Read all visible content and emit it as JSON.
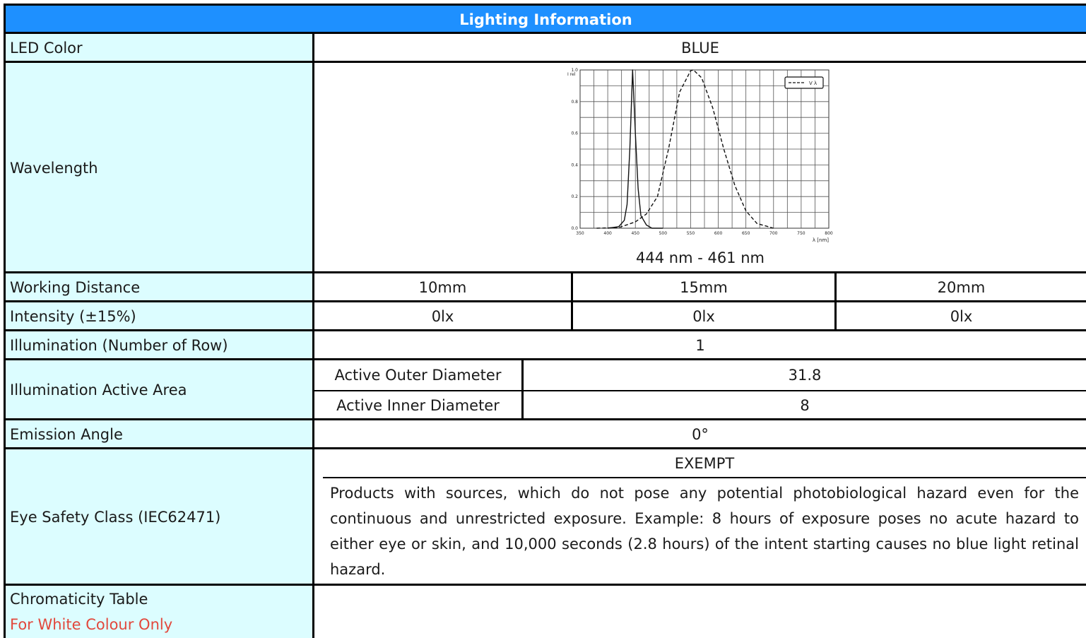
{
  "title": "Lighting Information",
  "led_color": {
    "label": "LED Color",
    "value": "BLUE"
  },
  "wavelength": {
    "label": "Wavelength",
    "range": "444 nm - 461 nm",
    "chart_data": {
      "type": "line",
      "xlabel": "λ [nm]",
      "ylabel": "I rel",
      "xlim": [
        350,
        800
      ],
      "ylim": [
        0,
        1.0
      ],
      "x_ticks": [
        "350",
        "400",
        "450",
        "500",
        "550",
        "600",
        "650",
        "700",
        "750",
        "800"
      ],
      "y_ticks": [
        "0.0",
        "0.2",
        "0.4",
        "0.6",
        "0.8",
        "1.0"
      ],
      "legend": "V λ",
      "series": [
        {
          "style": "solid",
          "x": [
            400,
            420,
            430,
            435,
            440,
            445,
            450,
            455,
            460,
            470,
            480,
            500
          ],
          "y": [
            0,
            0.01,
            0.05,
            0.15,
            0.5,
            1.0,
            0.6,
            0.25,
            0.08,
            0.02,
            0,
            0
          ]
        },
        {
          "name": "V λ",
          "style": "dashed",
          "x": [
            380,
            420,
            450,
            470,
            490,
            510,
            530,
            550,
            555,
            570,
            590,
            610,
            630,
            650,
            670,
            700
          ],
          "y": [
            0,
            0.004,
            0.04,
            0.09,
            0.2,
            0.5,
            0.86,
            0.995,
            1.0,
            0.95,
            0.76,
            0.5,
            0.27,
            0.11,
            0.03,
            0
          ]
        }
      ]
    }
  },
  "working_distance": {
    "label": "Working Distance",
    "values": [
      "10mm",
      "15mm",
      "20mm"
    ]
  },
  "intensity": {
    "label": "Intensity (±15%)",
    "values": [
      "0lx",
      "0lx",
      "0lx"
    ]
  },
  "illumination_rows": {
    "label": "Illumination (Number of Row)",
    "value": "1"
  },
  "active_area": {
    "label": "Illumination Active Area",
    "outer_label": "Active Outer Diameter",
    "outer_value": "31.8",
    "inner_label": "Active Inner Diameter",
    "inner_value": "8"
  },
  "emission": {
    "label": "Emission Angle",
    "value": "0°"
  },
  "eye_safety": {
    "label": "Eye Safety Class (IEC62471)",
    "value": "EXEMPT",
    "description": "Products with sources, which do not pose any potential photobiological hazard even for the continuous and unrestricted exposure. Example: 8 hours of exposure poses no acute hazard to either eye or skin, and 10,000 seconds (2.8 hours) of the intent starting causes no blue light retinal hazard."
  },
  "chromaticity": {
    "label": "Chromaticity Table",
    "note": "For White Colour Only"
  }
}
